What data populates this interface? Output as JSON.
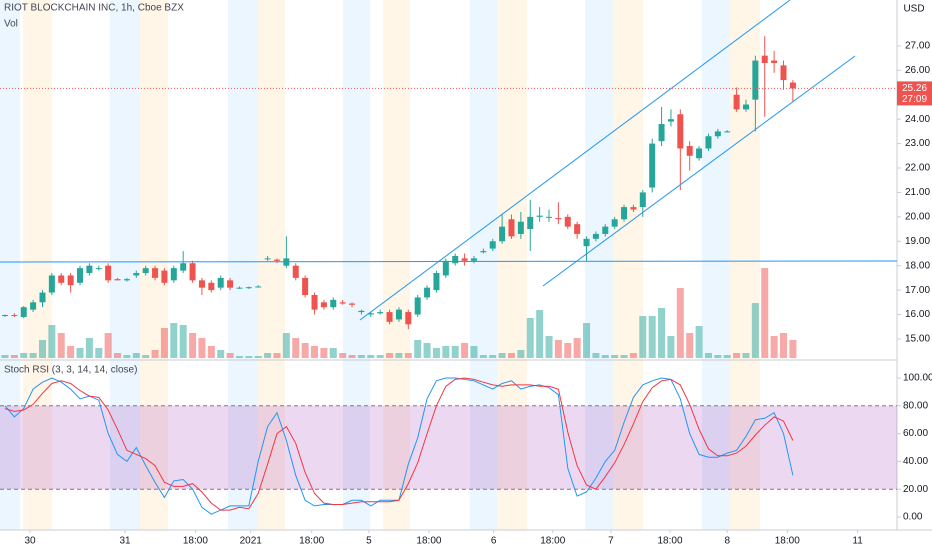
{
  "chart_data": [
    {
      "type": "candlestick",
      "title": "RIOT BLOCKCHAIN INC, 1h, Cboe BZX",
      "volume_label": "Vol",
      "currency": "USD",
      "candles": [
        [
          15.95,
          16.0,
          15.9,
          15.98
        ],
        [
          15.98,
          16.05,
          15.9,
          15.95
        ],
        [
          15.9,
          16.35,
          15.85,
          16.3
        ],
        [
          16.2,
          16.6,
          16.1,
          16.5
        ],
        [
          16.5,
          17.0,
          16.3,
          16.9
        ],
        [
          16.9,
          17.7,
          16.8,
          17.6
        ],
        [
          17.6,
          17.7,
          17.2,
          17.3
        ],
        [
          17.6,
          17.7,
          16.9,
          17.2
        ],
        [
          17.3,
          18.0,
          17.2,
          17.9
        ],
        [
          17.7,
          18.1,
          17.6,
          18.0
        ],
        [
          17.9,
          18.0,
          17.8,
          17.9
        ],
        [
          18.0,
          18.1,
          17.3,
          17.4
        ],
        [
          17.45,
          17.5,
          17.4,
          17.4
        ],
        [
          17.4,
          17.5,
          17.35,
          17.45
        ],
        [
          17.6,
          17.8,
          17.5,
          17.7
        ],
        [
          17.7,
          18.0,
          17.6,
          17.9
        ],
        [
          17.9,
          18.0,
          17.4,
          17.5
        ],
        [
          17.8,
          17.9,
          17.2,
          17.3
        ],
        [
          17.4,
          18.0,
          17.3,
          17.9
        ],
        [
          17.8,
          18.6,
          17.7,
          18.1
        ],
        [
          18.1,
          18.2,
          17.3,
          17.4
        ],
        [
          17.4,
          17.5,
          16.8,
          17.1
        ],
        [
          17.3,
          17.4,
          16.9,
          17.0
        ],
        [
          17.1,
          17.6,
          17.0,
          17.5
        ],
        [
          17.4,
          17.5,
          17.0,
          17.1
        ],
        [
          17.1,
          17.15,
          17.05,
          17.1
        ],
        [
          17.1,
          17.15,
          17.05,
          17.12
        ],
        [
          17.15,
          17.2,
          17.1,
          17.15
        ],
        [
          18.3,
          18.4,
          18.2,
          18.3
        ],
        [
          18.25,
          18.3,
          18.1,
          18.2
        ],
        [
          18.0,
          19.2,
          17.9,
          18.3
        ],
        [
          18.0,
          18.1,
          17.4,
          17.5
        ],
        [
          17.5,
          17.6,
          16.7,
          16.8
        ],
        [
          16.8,
          16.9,
          16.0,
          16.2
        ],
        [
          16.5,
          16.6,
          16.2,
          16.3
        ],
        [
          16.3,
          16.7,
          16.2,
          16.6
        ],
        [
          16.5,
          16.6,
          16.4,
          16.45
        ],
        [
          16.45,
          16.5,
          16.3,
          16.4
        ],
        [
          16.1,
          16.2,
          16.0,
          16.15
        ],
        [
          16.0,
          16.1,
          15.9,
          16.05
        ],
        [
          16.05,
          16.2,
          16.0,
          16.1
        ],
        [
          16.1,
          16.2,
          15.6,
          15.7
        ],
        [
          15.8,
          16.3,
          15.7,
          16.2
        ],
        [
          16.1,
          16.2,
          15.4,
          15.6
        ],
        [
          16.0,
          16.8,
          15.9,
          16.7
        ],
        [
          16.7,
          17.2,
          16.6,
          17.1
        ],
        [
          17.0,
          17.8,
          16.9,
          17.7
        ],
        [
          17.6,
          18.3,
          17.5,
          18.2
        ],
        [
          18.1,
          18.5,
          18.0,
          18.4
        ],
        [
          18.3,
          18.5,
          18.0,
          18.2
        ],
        [
          18.2,
          18.4,
          18.1,
          18.3
        ],
        [
          18.55,
          18.7,
          18.5,
          18.6
        ],
        [
          18.7,
          19.1,
          18.6,
          19.0
        ],
        [
          19.0,
          20.1,
          18.9,
          19.6
        ],
        [
          19.9,
          20.1,
          19.1,
          19.2
        ],
        [
          19.3,
          20.2,
          19.1,
          19.8
        ],
        [
          19.5,
          20.7,
          18.6,
          20.0
        ],
        [
          20.0,
          20.4,
          19.8,
          20.05
        ],
        [
          20.0,
          20.3,
          19.8,
          20.0
        ],
        [
          19.95,
          20.6,
          19.7,
          19.9
        ],
        [
          20.0,
          20.1,
          19.5,
          19.6
        ],
        [
          19.7,
          19.8,
          19.1,
          19.3
        ],
        [
          18.8,
          19.2,
          18.2,
          19.1
        ],
        [
          19.1,
          19.4,
          19.0,
          19.3
        ],
        [
          19.3,
          19.7,
          19.2,
          19.6
        ],
        [
          19.6,
          20.0,
          19.5,
          19.9
        ],
        [
          19.9,
          20.5,
          19.8,
          20.4
        ],
        [
          20.4,
          20.5,
          20.2,
          20.3
        ],
        [
          20.4,
          21.1,
          20.0,
          21.0
        ],
        [
          21.2,
          23.2,
          21.0,
          23.0
        ],
        [
          23.1,
          24.5,
          22.9,
          23.8
        ],
        [
          23.9,
          24.4,
          23.7,
          24.0
        ],
        [
          24.2,
          24.4,
          21.1,
          22.8
        ],
        [
          22.9,
          23.1,
          21.9,
          22.5
        ],
        [
          22.4,
          22.9,
          22.3,
          22.8
        ],
        [
          22.8,
          23.4,
          22.7,
          23.3
        ],
        [
          23.3,
          23.6,
          23.2,
          23.5
        ],
        [
          23.5,
          23.55,
          23.45,
          23.5
        ],
        [
          25.0,
          25.3,
          24.3,
          24.4
        ],
        [
          24.4,
          24.8,
          24.3,
          24.6
        ],
        [
          24.8,
          26.6,
          23.5,
          26.4
        ],
        [
          26.6,
          27.4,
          24.1,
          26.3
        ],
        [
          26.4,
          26.8,
          25.9,
          26.3
        ],
        [
          26.2,
          26.4,
          25.2,
          25.6
        ],
        [
          25.5,
          25.6,
          24.7,
          25.26
        ]
      ],
      "volume": [
        3,
        3,
        5,
        5,
        18,
        33,
        25,
        12,
        10,
        20,
        10,
        25,
        5,
        3,
        5,
        3,
        8,
        30,
        35,
        33,
        25,
        20,
        12,
        8,
        5,
        2,
        2,
        2,
        5,
        5,
        25,
        20,
        15,
        12,
        10,
        10,
        5,
        3,
        3,
        3,
        3,
        5,
        5,
        5,
        18,
        15,
        10,
        12,
        12,
        15,
        12,
        3,
        3,
        5,
        5,
        8,
        40,
        48,
        22,
        18,
        15,
        20,
        35,
        5,
        3,
        3,
        3,
        5,
        42,
        42,
        50,
        22,
        70,
        25,
        32,
        5,
        3,
        3,
        5,
        5,
        55,
        90,
        22,
        25,
        18
      ],
      "up_color": "#26a69a",
      "down_color": "#ef5350",
      "xlim": [
        -0.53,
        95.1
      ],
      "xticks": [
        {
          "value": 2.67,
          "label": "30"
        },
        {
          "value": 12.8,
          "label": "31"
        },
        {
          "value": 20.3,
          "label": "18:00"
        },
        {
          "value": 26.2,
          "label": "2021"
        },
        {
          "value": 32.7,
          "label": "18:00"
        },
        {
          "value": 38.8,
          "label": "5"
        },
        {
          "value": 45.2,
          "label": "18:00"
        },
        {
          "value": 52.1,
          "label": "6"
        },
        {
          "value": 58.4,
          "label": "18:00"
        },
        {
          "value": 64.6,
          "label": "7"
        },
        {
          "value": 70.9,
          "label": "18:00"
        },
        {
          "value": 77.0,
          "label": "8"
        },
        {
          "value": 83.4,
          "label": "18:00"
        },
        {
          "value": 90.9,
          "label": "11"
        }
      ],
      "ylim": [
        14.22,
        28.88
      ],
      "yticks": [
        {
          "value": 15,
          "label": "15.00"
        },
        {
          "value": 16,
          "label": "16.00"
        },
        {
          "value": 17,
          "label": "17.00"
        },
        {
          "value": 18,
          "label": "18.00"
        },
        {
          "value": 19,
          "label": "19.00"
        },
        {
          "value": 20,
          "label": "20.00"
        },
        {
          "value": 21,
          "label": "21.00"
        },
        {
          "value": 22,
          "label": "22.00"
        },
        {
          "value": 23,
          "label": "23.00"
        },
        {
          "value": 24,
          "label": "24.00"
        },
        {
          "value": 26,
          "label": "26.00"
        },
        {
          "value": 27,
          "label": "27.00"
        }
      ],
      "vlim": [
        0,
        100
      ],
      "last_price": 25.26,
      "countdown": "27:09"
    },
    {
      "type": "line",
      "title": "Stoch RSI (3, 3, 14, 14, close)",
      "series": [
        {
          "color": "#2196f3",
          "values": [
            80,
            72,
            78,
            92,
            97,
            100,
            97,
            92,
            85,
            87,
            84,
            60,
            45,
            40,
            50,
            37,
            25,
            14,
            26,
            27,
            20,
            7,
            2,
            5,
            8,
            8,
            8,
            40,
            65,
            75,
            55,
            30,
            12,
            8,
            9,
            9,
            9,
            12,
            12,
            8,
            12,
            12,
            12,
            38,
            57,
            85,
            98,
            100,
            100,
            99,
            98,
            95,
            92,
            96,
            98,
            92,
            94,
            95,
            93,
            88,
            35,
            15,
            18,
            28,
            40,
            48,
            68,
            86,
            95,
            98,
            100,
            99,
            85,
            60,
            45,
            43,
            43,
            46,
            48,
            58,
            70,
            71,
            75,
            60,
            30
          ]
        },
        {
          "color": "#f23645",
          "values": [
            78,
            76,
            77,
            81,
            89,
            96,
            98,
            96,
            91,
            87,
            86,
            77,
            63,
            48,
            45,
            42,
            37,
            25,
            22,
            22,
            24,
            18,
            10,
            5,
            5,
            7,
            6,
            17,
            38,
            60,
            65,
            53,
            32,
            17,
            10,
            9,
            9,
            10,
            11,
            11,
            11,
            11,
            12,
            24,
            39,
            60,
            80,
            94,
            99,
            100,
            99,
            97,
            95,
            94,
            95,
            95,
            95,
            94,
            94,
            92,
            61,
            37,
            23,
            20,
            29,
            39,
            52,
            67,
            83,
            93,
            98,
            99,
            95,
            81,
            63,
            49,
            44,
            44,
            46,
            51,
            59,
            66,
            72,
            69,
            55
          ]
        }
      ],
      "band": [
        20,
        80
      ],
      "band_color": "#9c27b0",
      "ylim": [
        -9.35,
        111.5
      ],
      "yticks": [
        {
          "value": 0,
          "label": "0.00"
        },
        {
          "value": 20,
          "label": "20.00"
        },
        {
          "value": 40,
          "label": "40.00"
        },
        {
          "value": 60,
          "label": "60.00"
        },
        {
          "value": 80,
          "label": "80.00"
        },
        {
          "value": 100,
          "label": "100.00"
        }
      ]
    }
  ]
}
